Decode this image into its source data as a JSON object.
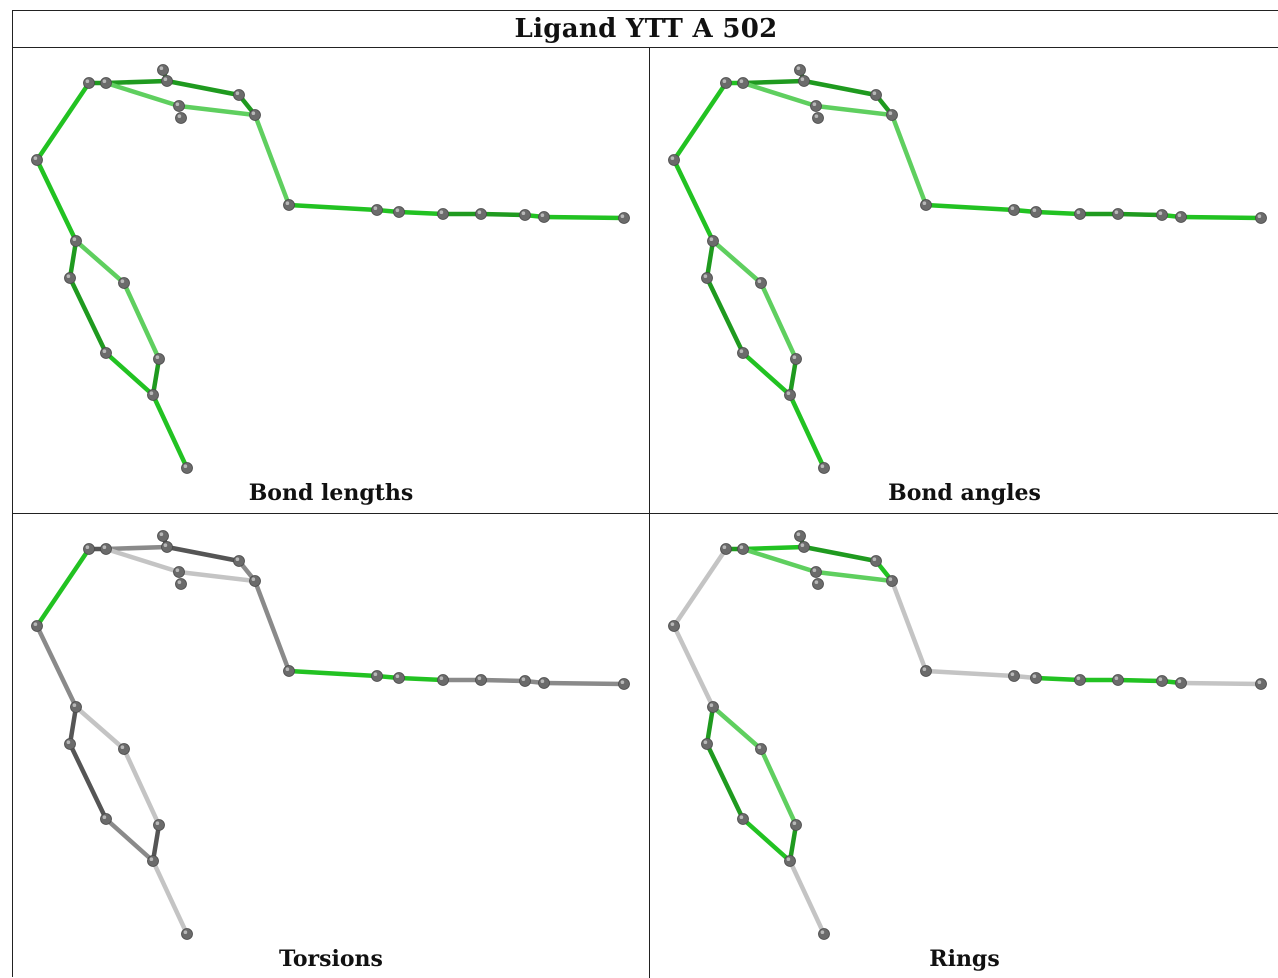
{
  "title": "Ligand YTT A 502",
  "panels": [
    {
      "label": "Bond lengths"
    },
    {
      "label": "Bond angles"
    },
    {
      "label": "Torsions"
    },
    {
      "label": "Rings"
    }
  ],
  "colors": {
    "green_dark": "#1f9a1f",
    "green": "#22c222",
    "green_light": "#5fcf5f",
    "gray_dark": "#555555",
    "gray": "#8a8a8a",
    "gray_light": "#c4c4c4",
    "atom": "#6b6b6b"
  }
}
